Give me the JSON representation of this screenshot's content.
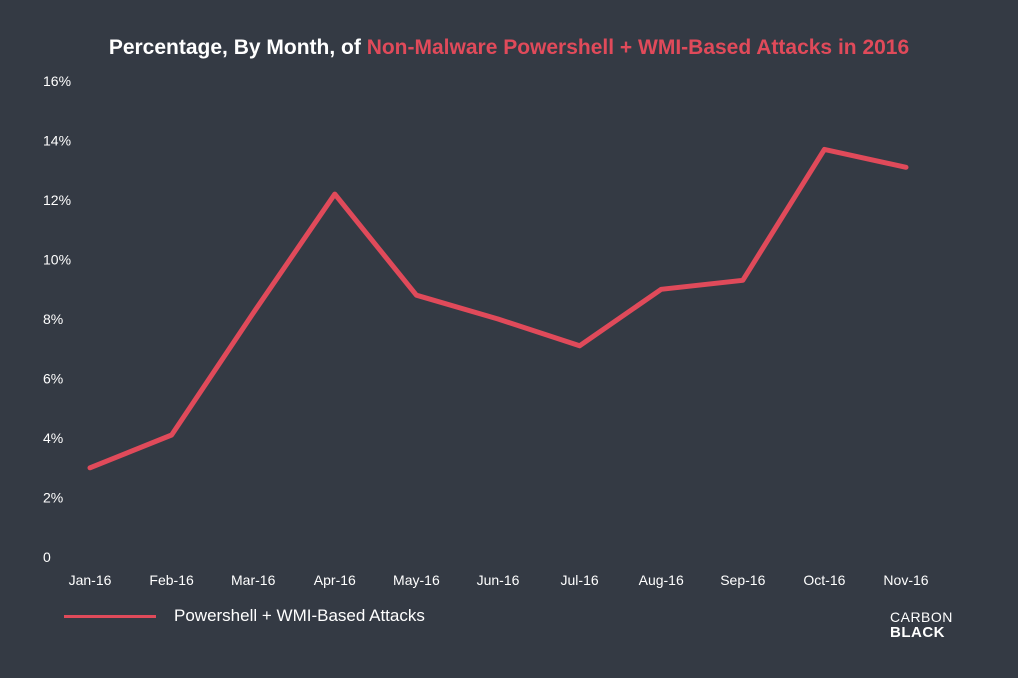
{
  "title": {
    "prefix": "Percentage, By Month, of ",
    "highlight": "Non-Malware Powershell + WMI-Based Attacks in 2016"
  },
  "legend": {
    "label": "Powershell + WMI-Based Attacks"
  },
  "logo": {
    "line1": "CARBON",
    "line2": "BLACK"
  },
  "colors": {
    "background": "#343a44",
    "accent": "#e04a5a",
    "text": "#ffffff"
  },
  "chart_data": {
    "type": "line",
    "categories": [
      "Jan-16",
      "Feb-16",
      "Mar-16",
      "Apr-16",
      "May-16",
      "Jun-16",
      "Jul-16",
      "Aug-16",
      "Sep-16",
      "Oct-16",
      "Nov-16"
    ],
    "series": [
      {
        "name": "Powershell + WMI-Based Attacks",
        "values": [
          3.0,
          4.1,
          8.2,
          12.2,
          8.8,
          8.0,
          7.1,
          9.0,
          9.3,
          13.7,
          13.1
        ]
      }
    ],
    "yticks": [
      "0",
      "2%",
      "4%",
      "6%",
      "8%",
      "10%",
      "12%",
      "14%",
      "16%"
    ],
    "ylim": [
      0,
      16
    ],
    "grid": false,
    "legend_position": "bottom-left"
  }
}
